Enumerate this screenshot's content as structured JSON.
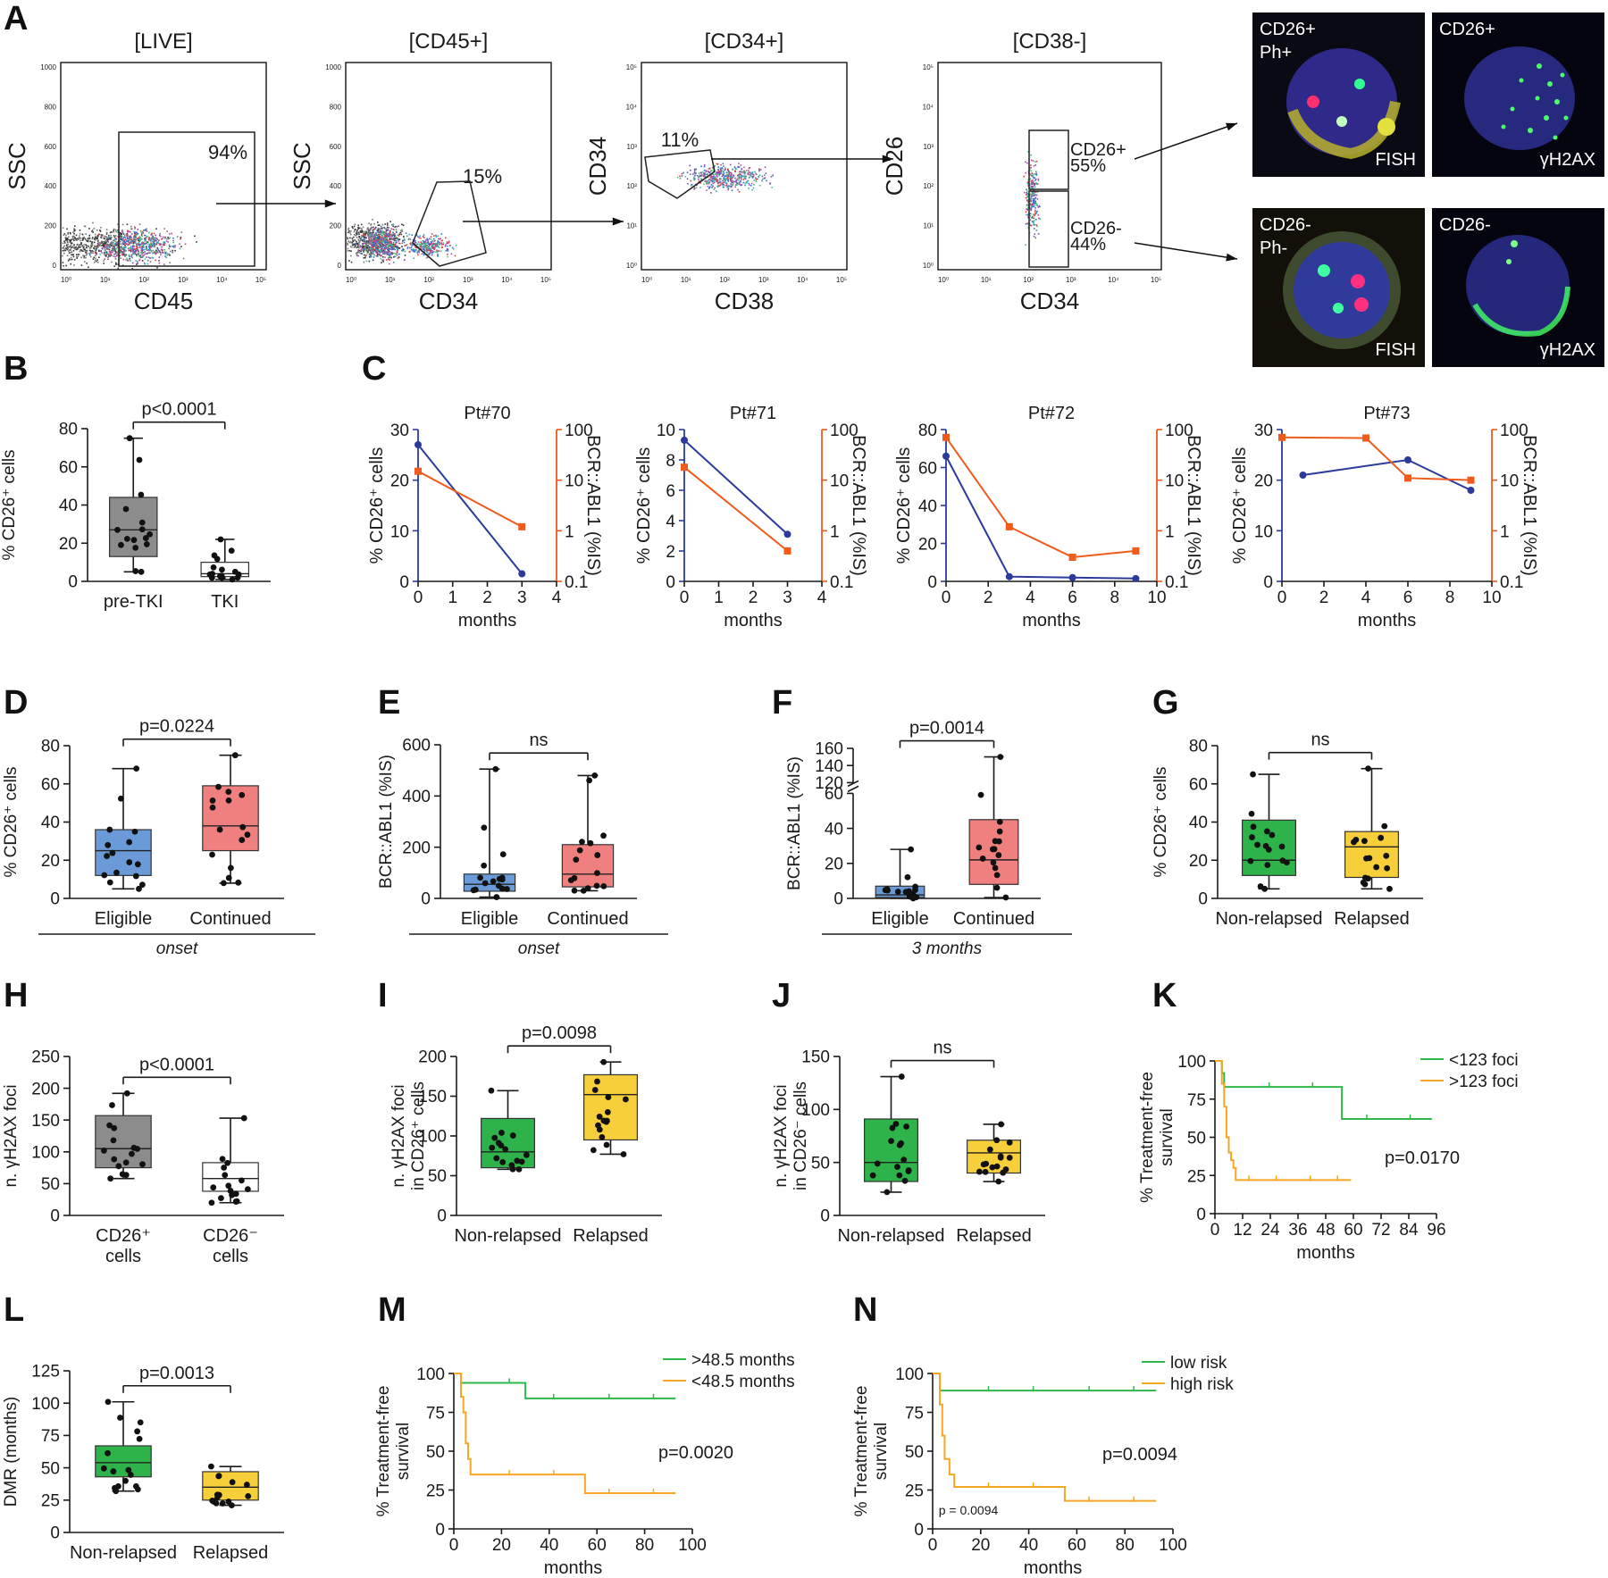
{
  "panel_labels": {
    "A": "A",
    "B": "B",
    "C": "C",
    "D": "D",
    "E": "E",
    "F": "F",
    "G": "G",
    "H": "H",
    "I": "I",
    "J": "J",
    "K": "K",
    "L": "L",
    "M": "M",
    "N": "N"
  },
  "colors": {
    "blue": "#6a9bd8",
    "red": "#f08080",
    "gray": "#8c8c8c",
    "green": "#2db34a",
    "yellow": "#f7cf3a",
    "navy": "#2b3a9b",
    "orange": "#f05a1a",
    "km_green": "#2fb84a",
    "km_orange": "#f5a623",
    "arrow": "#111111"
  },
  "micrographs": [
    {
      "top_label": "CD26+\nPh+",
      "bottom_label": "FISH",
      "style": "fish"
    },
    {
      "top_label": "CD26+",
      "bottom_label": "γH2AX",
      "style": "foci"
    },
    {
      "top_label": "CD26-\nPh-",
      "bottom_label": "FISH",
      "style": "fish"
    },
    {
      "top_label": "CD26-",
      "bottom_label": "γH2AX",
      "style": "foci"
    }
  ],
  "chart_data": [
    {
      "panel": "A",
      "type": "scatter",
      "title": "[LIVE]",
      "xlabel": "CD45",
      "ylabel": "SSC",
      "xscale": "log",
      "xlim": [
        1,
        100000
      ],
      "ylim": [
        0,
        1000
      ],
      "yticks": [
        "0",
        "200",
        "400",
        "600",
        "800",
        "1000"
      ],
      "xticks": [
        "10⁰",
        "10¹",
        "10²",
        "10³",
        "10⁴",
        "10⁵"
      ],
      "gate_label": "94%"
    },
    {
      "panel": "A",
      "type": "scatter",
      "title": "[CD45+]",
      "xlabel": "CD34",
      "ylabel": "SSC",
      "xscale": "log",
      "xlim": [
        1,
        100000
      ],
      "ylim": [
        0,
        1000
      ],
      "yticks": [
        "0",
        "200",
        "400",
        "600",
        "800",
        "1000"
      ],
      "xticks": [
        "10⁰",
        "10¹",
        "10²",
        "10³",
        "10⁴",
        "10⁵"
      ],
      "gate_label": "15%"
    },
    {
      "panel": "A",
      "type": "scatter",
      "title": "[CD34+]",
      "xlabel": "CD38",
      "ylabel": "CD34",
      "xscale": "log",
      "yscale": "log",
      "xlim": [
        1,
        100000
      ],
      "ylim": [
        1,
        100000
      ],
      "yticks": [
        "10⁰",
        "10¹",
        "10²",
        "10³",
        "10⁴",
        "10⁵"
      ],
      "xticks": [
        "10⁰",
        "10¹",
        "10²",
        "10³",
        "10⁴",
        "10⁵"
      ],
      "gate_label": "11%"
    },
    {
      "panel": "A",
      "type": "scatter",
      "title": "[CD38-]",
      "xlabel": "CD34",
      "ylabel": "CD26",
      "xscale": "log",
      "yscale": "log",
      "xlim": [
        1,
        100000
      ],
      "ylim": [
        1,
        100000
      ],
      "yticks": [
        "10⁰",
        "10¹",
        "10²",
        "10³",
        "10⁴",
        "10⁵"
      ],
      "xticks": [
        "10⁰",
        "10¹",
        "10²",
        "10³",
        "10⁴",
        "10⁵"
      ],
      "gate_labels": [
        "CD26+",
        "55%",
        "CD26-",
        "44%"
      ]
    },
    {
      "panel": "B",
      "type": "box",
      "ylabel": "% CD26⁺ cells",
      "ylim": [
        0,
        80
      ],
      "yticks": [
        0,
        20,
        40,
        60,
        80
      ],
      "pvalue": "p<0.0001",
      "groups": [
        {
          "name": "pre-TKI",
          "min": 5,
          "q1": 13,
          "median": 27,
          "q3": 44,
          "max": 75,
          "color": "gray"
        },
        {
          "name": "TKI",
          "min": 1,
          "q1": 2.5,
          "median": 4,
          "q3": 10,
          "max": 22,
          "color": "white"
        }
      ]
    },
    {
      "panel": "C",
      "type": "line",
      "title": "Pt#70",
      "xlabel": "months",
      "ylabel": "% CD26⁺ cells",
      "y2label": "BCR::ABL1 (%IS)",
      "xlim": [
        0,
        4
      ],
      "xticks": [
        0,
        1,
        2,
        3,
        4
      ],
      "ylim": [
        0,
        30
      ],
      "yticks": [
        0,
        10,
        20,
        30
      ],
      "y2ticks": [
        "0.1",
        "1",
        "10",
        "100"
      ],
      "series": [
        {
          "axis": "left",
          "color": "navy",
          "x": [
            0,
            3
          ],
          "y": [
            27,
            1.5
          ]
        },
        {
          "axis": "right",
          "color": "orange",
          "x": [
            0,
            3
          ],
          "y": [
            15,
            1.2
          ]
        }
      ]
    },
    {
      "panel": "C",
      "type": "line",
      "title": "Pt#71",
      "xlabel": "months",
      "ylabel": "% CD26⁺ cells",
      "y2label": "BCR::ABL1 (%IS)",
      "xlim": [
        0,
        4
      ],
      "xticks": [
        0,
        1,
        2,
        3,
        4
      ],
      "ylim": [
        0,
        10
      ],
      "yticks": [
        0,
        2,
        4,
        6,
        8,
        10
      ],
      "y2ticks": [
        "0.1",
        "1",
        "10",
        "100"
      ],
      "series": [
        {
          "axis": "left",
          "color": "navy",
          "x": [
            0,
            3
          ],
          "y": [
            9.3,
            3.1
          ]
        },
        {
          "axis": "right",
          "color": "orange",
          "x": [
            0,
            3
          ],
          "y": [
            18,
            0.4
          ]
        }
      ]
    },
    {
      "panel": "C",
      "type": "line",
      "title": "Pt#72",
      "xlabel": "months",
      "ylabel": "% CD26⁺ cells",
      "y2label": "BCR::ABL1 (%IS)",
      "xlim": [
        0,
        10
      ],
      "xticks": [
        0,
        2,
        4,
        6,
        8,
        10
      ],
      "ylim": [
        0,
        80
      ],
      "yticks": [
        0,
        20,
        40,
        60,
        80
      ],
      "y2ticks": [
        "0.1",
        "1",
        "10",
        "100"
      ],
      "series": [
        {
          "axis": "left",
          "color": "navy",
          "x": [
            0,
            3,
            6,
            9
          ],
          "y": [
            66,
            2.5,
            2,
            1.5
          ]
        },
        {
          "axis": "right",
          "color": "orange",
          "x": [
            0,
            3,
            6,
            9
          ],
          "y": [
            70,
            1.2,
            0.3,
            0.4
          ]
        }
      ]
    },
    {
      "panel": "C",
      "type": "line",
      "title": "Pt#73",
      "xlabel": "months",
      "ylabel": "% CD26⁺ cells",
      "y2label": "BCR::ABL1 (%IS)",
      "xlim": [
        0,
        10
      ],
      "xticks": [
        0,
        2,
        4,
        6,
        8,
        10
      ],
      "ylim": [
        0,
        30
      ],
      "yticks": [
        0,
        10,
        20,
        30
      ],
      "y2ticks": [
        "0.1",
        "1",
        "10",
        "100"
      ],
      "series": [
        {
          "axis": "left",
          "color": "navy",
          "x": [
            1,
            6,
            9
          ],
          "y": [
            21,
            24,
            18
          ]
        },
        {
          "axis": "right",
          "color": "orange",
          "x": [
            0,
            4,
            6,
            9
          ],
          "y": [
            70,
            68,
            11,
            10
          ]
        }
      ]
    },
    {
      "panel": "D",
      "type": "box",
      "ylabel": "% CD26⁺ cells",
      "ylim": [
        0,
        80
      ],
      "yticks": [
        0,
        20,
        40,
        60,
        80
      ],
      "pvalue": "p=0.0224",
      "subgroup_label": "onset",
      "groups": [
        {
          "name": "Eligible",
          "min": 5,
          "q1": 12,
          "median": 25,
          "q3": 36,
          "max": 68,
          "color": "blue"
        },
        {
          "name": "Continued",
          "min": 8,
          "q1": 25,
          "median": 38,
          "q3": 59,
          "max": 75,
          "color": "red"
        }
      ]
    },
    {
      "panel": "E",
      "type": "box",
      "ylabel": "BCR::ABL1 (%IS)",
      "ylim": [
        0,
        600
      ],
      "yticks": [
        0,
        200,
        400,
        600
      ],
      "pvalue": "ns",
      "subgroup_label": "onset",
      "groups": [
        {
          "name": "Eligible",
          "min": 5,
          "q1": 28,
          "median": 55,
          "q3": 95,
          "max": 505,
          "color": "blue"
        },
        {
          "name": "Continued",
          "min": 30,
          "q1": 45,
          "median": 95,
          "q3": 210,
          "max": 480,
          "color": "red"
        }
      ]
    },
    {
      "panel": "F",
      "type": "box",
      "ylabel": "BCR::ABL1 (%IS)",
      "ylim": [
        0,
        160
      ],
      "axis_break": [
        60,
        120
      ],
      "yticks": [
        0,
        20,
        40,
        60,
        120,
        140,
        160
      ],
      "pvalue": "p=0.0014",
      "subgroup_label": "3 months",
      "groups": [
        {
          "name": "Eligible",
          "min": 0,
          "q1": 0.5,
          "median": 2,
          "q3": 7,
          "max": 28,
          "color": "blue"
        },
        {
          "name": "Continued",
          "min": 0.5,
          "q1": 8,
          "median": 22,
          "q3": 45,
          "max": 150,
          "color": "red"
        }
      ]
    },
    {
      "panel": "G",
      "type": "box",
      "ylabel": "% CD26⁺ cells",
      "ylim": [
        0,
        80
      ],
      "yticks": [
        0,
        20,
        40,
        60,
        80
      ],
      "pvalue": "ns",
      "groups": [
        {
          "name": "Non-relapsed",
          "min": 5,
          "q1": 12,
          "median": 20,
          "q3": 41,
          "max": 65,
          "color": "green"
        },
        {
          "name": "Relapsed",
          "min": 5,
          "q1": 11,
          "median": 27,
          "q3": 35,
          "max": 68,
          "color": "yellow"
        }
      ]
    },
    {
      "panel": "H",
      "type": "box",
      "ylabel": "n. γH2AX foci",
      "ylim": [
        0,
        250
      ],
      "yticks": [
        0,
        50,
        100,
        150,
        200,
        250
      ],
      "pvalue": "p<0.0001",
      "groups": [
        {
          "name": "CD26⁺\ncells",
          "min": 58,
          "q1": 75,
          "median": 105,
          "q3": 157,
          "max": 192,
          "color": "gray"
        },
        {
          "name": "CD26⁻\ncells",
          "min": 20,
          "q1": 38,
          "median": 58,
          "q3": 83,
          "max": 153,
          "color": "white"
        }
      ]
    },
    {
      "panel": "I",
      "type": "box",
      "ylabel": "n. γH2AX foci\nin CD26⁺ cells",
      "ylim": [
        0,
        200
      ],
      "yticks": [
        0,
        50,
        100,
        150,
        200
      ],
      "pvalue": "p=0.0098",
      "groups": [
        {
          "name": "Non-relapsed",
          "min": 58,
          "q1": 60,
          "median": 80,
          "q3": 122,
          "max": 157,
          "color": "green"
        },
        {
          "name": "Relapsed",
          "min": 77,
          "q1": 95,
          "median": 152,
          "q3": 177,
          "max": 193,
          "color": "yellow"
        }
      ]
    },
    {
      "panel": "J",
      "type": "box",
      "ylabel": "n. γH2AX foci\nin CD26⁻ cells",
      "ylim": [
        0,
        150
      ],
      "yticks": [
        0,
        50,
        100,
        150
      ],
      "pvalue": "ns",
      "groups": [
        {
          "name": "Non-relapsed",
          "min": 22,
          "q1": 32,
          "median": 50,
          "q3": 91,
          "max": 131,
          "color": "green"
        },
        {
          "name": "Relapsed",
          "min": 32,
          "q1": 40,
          "median": 59,
          "q3": 71,
          "max": 86,
          "color": "yellow"
        }
      ]
    },
    {
      "panel": "K",
      "type": "line",
      "ylabel": "% Treatment-free\nsurvival",
      "xlabel": "months",
      "xlim": [
        0,
        96
      ],
      "xticks": [
        0,
        12,
        24,
        36,
        48,
        60,
        72,
        84,
        96
      ],
      "ylim": [
        0,
        100
      ],
      "yticks": [
        0,
        25,
        50,
        75,
        100
      ],
      "pvalue": "p=0.0170",
      "series": [
        {
          "name": "<123 foci",
          "color": "km_green",
          "x": [
            0,
            2,
            3,
            4,
            55,
            55,
            94
          ],
          "y": [
            100,
            100,
            92,
            83,
            83,
            62,
            62
          ]
        },
        {
          "name": ">123 foci",
          "color": "km_orange",
          "x": [
            0,
            2,
            3,
            4,
            5,
            6,
            7,
            8,
            9,
            59
          ],
          "y": [
            100,
            100,
            85,
            70,
            50,
            40,
            35,
            30,
            22,
            22
          ]
        }
      ]
    },
    {
      "panel": "L",
      "type": "box",
      "ylabel": "DMR (months)",
      "ylim": [
        0,
        125
      ],
      "yticks": [
        0,
        25,
        50,
        75,
        100,
        125
      ],
      "pvalue": "p=0.0013",
      "groups": [
        {
          "name": "Non-relapsed",
          "min": 32,
          "q1": 43,
          "median": 54,
          "q3": 67,
          "max": 101,
          "color": "green"
        },
        {
          "name": "Relapsed",
          "min": 21,
          "q1": 25,
          "median": 35,
          "q3": 47,
          "max": 51,
          "color": "yellow"
        }
      ]
    },
    {
      "panel": "M",
      "type": "line",
      "ylabel": "% Treatment-free\nsurvival",
      "xlabel": "months",
      "xlim": [
        0,
        100
      ],
      "xticks": [
        0,
        20,
        40,
        60,
        80,
        100
      ],
      "ylim": [
        0,
        100
      ],
      "yticks": [
        0,
        25,
        50,
        75,
        100
      ],
      "pvalue": "p=0.0020",
      "series": [
        {
          "name": ">48.5 months",
          "color": "km_green",
          "x": [
            0,
            3,
            3,
            30,
            30,
            93
          ],
          "y": [
            100,
            100,
            94,
            94,
            84,
            84
          ]
        },
        {
          "name": "<48.5 months",
          "color": "km_orange",
          "x": [
            0,
            2,
            3,
            4,
            5,
            6,
            7,
            55,
            55,
            93
          ],
          "y": [
            100,
            100,
            85,
            75,
            55,
            45,
            35,
            35,
            23,
            23
          ]
        }
      ]
    },
    {
      "panel": "N",
      "type": "line",
      "ylabel": "% Treatment-free\nsurvival",
      "xlabel": "months",
      "xlim": [
        0,
        100
      ],
      "xticks": [
        0,
        20,
        40,
        60,
        80,
        100
      ],
      "ylim": [
        0,
        100
      ],
      "yticks": [
        0,
        25,
        50,
        75,
        100
      ],
      "pvalue": "p=0.0094",
      "pvalue_small": "p = 0.0094",
      "series": [
        {
          "name": "low risk",
          "color": "km_green",
          "x": [
            0,
            3,
            3,
            93
          ],
          "y": [
            100,
            100,
            89,
            89
          ]
        },
        {
          "name": "high risk",
          "color": "km_orange",
          "x": [
            0,
            2,
            3,
            4,
            5,
            7,
            9,
            55,
            55,
            93
          ],
          "y": [
            100,
            100,
            80,
            60,
            45,
            35,
            27,
            27,
            18,
            18
          ]
        }
      ]
    }
  ]
}
